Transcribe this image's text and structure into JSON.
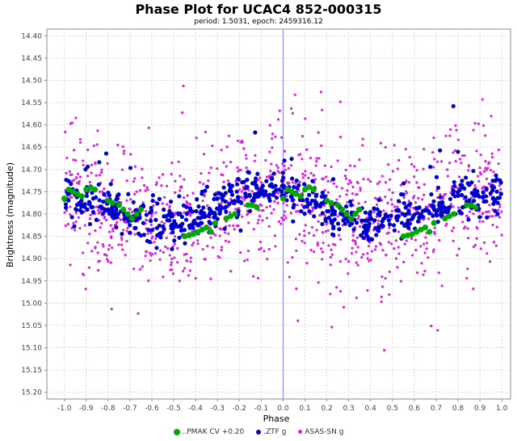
{
  "chart_data": {
    "type": "scatter",
    "title": "Phase Plot for UCAC4 852-000315",
    "subtitle": "period: 1.5031, epoch: 2459316.12",
    "xlabel": "Phase",
    "ylabel": "Brightness (magnitude)",
    "xlim": [
      -1.08,
      1.04
    ],
    "ylim": [
      15.215,
      14.385
    ],
    "y_inverted": true,
    "x_ticks": [
      "-1.0",
      "-0.9",
      "-0.8",
      "-0.7",
      "-0.6",
      "-0.5",
      "-0.4",
      "-0.3",
      "-0.2",
      "-0.1",
      "0.0",
      "0.1",
      "0.2",
      "0.3",
      "0.4",
      "0.5",
      "0.6",
      "0.7",
      "0.8",
      "0.9",
      "1.0"
    ],
    "y_ticks": [
      "14.40",
      "14.45",
      "14.50",
      "14.55",
      "14.60",
      "14.65",
      "14.70",
      "14.75",
      "14.80",
      "14.85",
      "14.90",
      "14.95",
      "15.00",
      "15.05",
      "15.10",
      "15.15",
      "15.20"
    ],
    "grid": true,
    "zero_line": true,
    "legend_position": "bottom",
    "series": [
      {
        "name": "..PMAK CV +0.20",
        "color": "#00aa00",
        "x": [
          -1.0,
          -0.98,
          -0.96,
          -0.94,
          -0.92,
          -0.9,
          -0.88,
          -0.86,
          -0.8,
          -0.78,
          -0.75,
          -0.73,
          -0.71,
          -0.69,
          -0.67,
          -0.65,
          -0.45,
          -0.43,
          -0.41,
          -0.39,
          -0.37,
          -0.35,
          -0.33,
          -0.31,
          -0.26,
          -0.24,
          -0.22,
          -0.16,
          -0.14,
          -0.12,
          0.0,
          0.02,
          0.04,
          0.06,
          0.08,
          0.1,
          0.12,
          0.14,
          0.2,
          0.22,
          0.25,
          0.27,
          0.29,
          0.31,
          0.33,
          0.35,
          0.55,
          0.57,
          0.59,
          0.61,
          0.63,
          0.65,
          0.67,
          0.69,
          0.74,
          0.76,
          0.78,
          0.84,
          0.86,
          0.88
        ],
        "y": [
          14.765,
          14.745,
          14.75,
          14.755,
          14.76,
          14.745,
          14.74,
          14.745,
          14.77,
          14.775,
          14.78,
          14.79,
          14.8,
          14.81,
          14.8,
          14.79,
          14.85,
          14.848,
          14.845,
          14.84,
          14.835,
          14.83,
          14.84,
          14.82,
          14.81,
          14.805,
          14.8,
          14.78,
          14.78,
          14.785,
          14.765,
          14.745,
          14.75,
          14.755,
          14.76,
          14.745,
          14.74,
          14.745,
          14.77,
          14.775,
          14.78,
          14.79,
          14.8,
          14.81,
          14.8,
          14.79,
          14.85,
          14.848,
          14.845,
          14.84,
          14.835,
          14.83,
          14.84,
          14.82,
          14.81,
          14.805,
          14.8,
          14.78,
          14.78,
          14.785
        ]
      },
      {
        "name": ".ZTF g",
        "color": "#0000cc",
        "note": "dense band; generated points follow the folded light curve",
        "sample_x": [
          -1.0,
          -0.9,
          -0.8,
          -0.7,
          -0.6,
          -0.5,
          -0.4,
          -0.3,
          -0.2,
          -0.1,
          0.0,
          0.1,
          0.2,
          0.3,
          0.4,
          0.5,
          0.6,
          0.7,
          0.8,
          0.9,
          1.0
        ],
        "sample_y": [
          14.76,
          14.76,
          14.78,
          14.79,
          14.81,
          14.82,
          14.81,
          14.79,
          14.76,
          14.75,
          14.75,
          14.76,
          14.78,
          14.79,
          14.81,
          14.82,
          14.81,
          14.79,
          14.76,
          14.75,
          14.75
        ]
      },
      {
        "name": "ASAS-SN g",
        "color": "#dd22dd",
        "note": "widely scattered; generated points",
        "sample_x": [
          -1.0,
          -0.5,
          0.0,
          0.5,
          1.0
        ],
        "sample_y": [
          14.8,
          14.85,
          14.8,
          14.85,
          14.8
        ]
      }
    ]
  }
}
